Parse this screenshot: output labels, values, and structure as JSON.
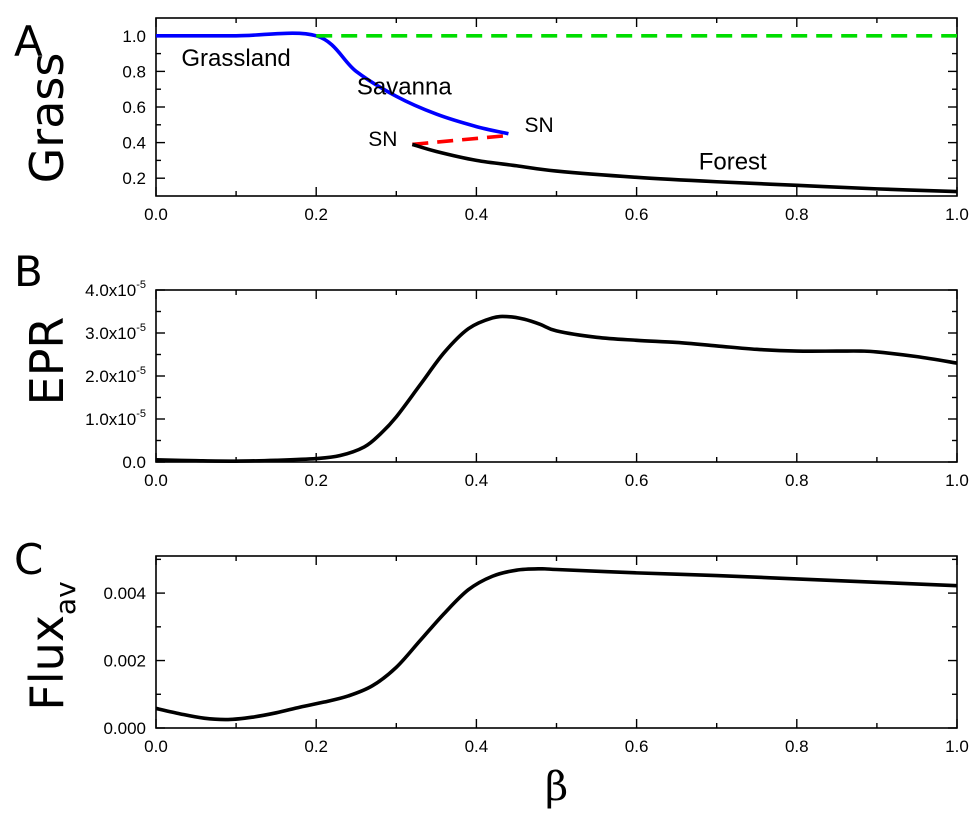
{
  "chart_data": [
    {
      "panel": "A",
      "type": "line",
      "ylabel": "Grass",
      "xlim": [
        0.0,
        1.0
      ],
      "ylim": [
        0.1,
        1.1
      ],
      "xticks": [
        "0.0",
        "0.2",
        "0.4",
        "0.6",
        "0.8",
        "1.0"
      ],
      "yticks": [
        "0.2",
        "0.4",
        "0.6",
        "0.8",
        "1.0"
      ],
      "series": [
        {
          "color": "#0000ff",
          "style": "solid",
          "x": [
            0.0,
            0.1,
            0.2,
            0.25,
            0.3,
            0.35,
            0.4,
            0.44
          ],
          "y": [
            1.0,
            1.0,
            1.0,
            0.8,
            0.66,
            0.56,
            0.49,
            0.45
          ]
        },
        {
          "color": "#00dd00",
          "style": "dashed",
          "x": [
            0.2,
            1.0
          ],
          "y": [
            1.0,
            1.0
          ]
        },
        {
          "color": "#ff0000",
          "style": "dashed",
          "x": [
            0.32,
            0.44
          ],
          "y": [
            0.39,
            0.44
          ]
        },
        {
          "color": "#000000",
          "style": "solid",
          "x": [
            0.32,
            0.35,
            0.4,
            0.45,
            0.5,
            0.6,
            0.7,
            0.8,
            0.9,
            1.0
          ],
          "y": [
            0.39,
            0.35,
            0.3,
            0.27,
            0.24,
            0.205,
            0.18,
            0.16,
            0.14,
            0.125
          ]
        }
      ],
      "annotations": [
        {
          "text": "Grassland",
          "x": 0.1,
          "y": 0.83
        },
        {
          "text": "Savanna",
          "x": 0.31,
          "y": 0.67
        },
        {
          "text": "SN",
          "x": 0.46,
          "y": 0.46
        },
        {
          "text": "SN",
          "x": 0.265,
          "y": 0.38
        },
        {
          "text": "Forest",
          "x": 0.72,
          "y": 0.25
        }
      ]
    },
    {
      "panel": "B",
      "type": "line",
      "ylabel": "EPR",
      "xlim": [
        0.0,
        1.0
      ],
      "ylim": [
        0,
        4e-05
      ],
      "xticks": [
        "0.0",
        "0.2",
        "0.4",
        "0.6",
        "0.8",
        "1.0"
      ],
      "yticks": [
        {
          "base": "0.0",
          "exp": ""
        },
        {
          "base": "1.0x10",
          "exp": "-5"
        },
        {
          "base": "2.0x10",
          "exp": "-5"
        },
        {
          "base": "3.0x10",
          "exp": "-5"
        },
        {
          "base": "4.0x10",
          "exp": "-5"
        }
      ],
      "series": [
        {
          "color": "#000000",
          "style": "solid",
          "x": [
            0.0,
            0.05,
            0.1,
            0.15,
            0.2,
            0.23,
            0.26,
            0.28,
            0.3,
            0.33,
            0.36,
            0.39,
            0.42,
            0.44,
            0.46,
            0.48,
            0.5,
            0.55,
            0.6,
            0.65,
            0.7,
            0.75,
            0.8,
            0.85,
            0.88,
            0.9,
            0.95,
            1.0
          ],
          "y": [
            5e-07,
            3e-07,
            2e-07,
            4e-07,
            8e-07,
            1.5e-06,
            3.5e-06,
            6.5e-06,
            1.05e-05,
            1.8e-05,
            2.55e-05,
            3.1e-05,
            3.35e-05,
            3.38e-05,
            3.32e-05,
            3.2e-05,
            3.05e-05,
            2.9e-05,
            2.83e-05,
            2.78e-05,
            2.7e-05,
            2.62e-05,
            2.58e-05,
            2.58e-05,
            2.58e-05,
            2.56e-05,
            2.45e-05,
            2.3e-05
          ]
        }
      ]
    },
    {
      "panel": "C",
      "type": "line",
      "ylabel": "Flux",
      "ylabel_sub": "av",
      "xlabel": "β",
      "xlim": [
        0.0,
        1.0
      ],
      "ylim": [
        0.0,
        0.0051
      ],
      "xticks": [
        "0.0",
        "0.2",
        "0.4",
        "0.6",
        "0.8",
        "1.0"
      ],
      "yticks": [
        "0.000",
        "0.002",
        "0.004"
      ],
      "series": [
        {
          "color": "#000000",
          "style": "solid",
          "x": [
            0.0,
            0.03,
            0.06,
            0.09,
            0.12,
            0.15,
            0.18,
            0.21,
            0.24,
            0.27,
            0.3,
            0.33,
            0.36,
            0.39,
            0.42,
            0.45,
            0.48,
            0.5,
            0.6,
            0.7,
            0.8,
            0.9,
            1.0
          ],
          "y": [
            0.00058,
            0.00042,
            0.00029,
            0.00025,
            0.00032,
            0.00045,
            0.00062,
            0.00077,
            0.00095,
            0.00125,
            0.0018,
            0.0026,
            0.0034,
            0.0041,
            0.0045,
            0.00468,
            0.00472,
            0.0047,
            0.0046,
            0.00452,
            0.00442,
            0.00432,
            0.00422
          ]
        }
      ]
    }
  ]
}
